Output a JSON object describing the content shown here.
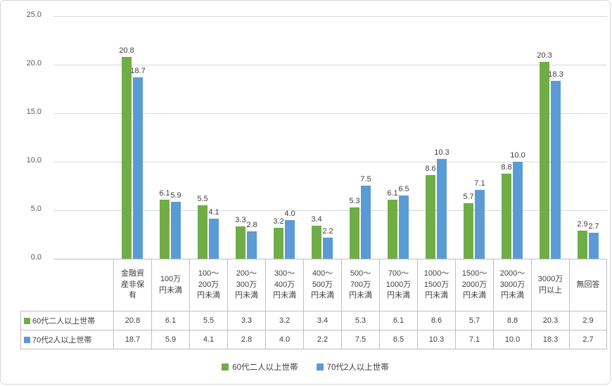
{
  "chart_data": {
    "type": "bar",
    "title": "",
    "ylim": [
      0,
      25
    ],
    "yticks": [
      0,
      5,
      10,
      15,
      20,
      25
    ],
    "grid": true,
    "legend_position": "bottom",
    "data_table_shown": true,
    "categories": [
      "金融資産非保有",
      "100万円未満",
      "100〜200万円未満",
      "200〜300万円未満",
      "300〜400万円未満",
      "400〜500万円未満",
      "500〜700万円未満",
      "700〜1000万円未満",
      "1000〜1500万円未満",
      "1500〜2000万円未満",
      "2000〜3000万円未満",
      "3000万円以上",
      "無回答"
    ],
    "axis_labels": [
      "金融資\n産非保\n有",
      "100万\n円未満",
      "100〜\n200万\n円未満",
      "200〜\n300万\n円未満",
      "300〜\n400万\n円未満",
      "400〜\n500万\n円未満",
      "500〜\n700万\n円未満",
      "700〜\n1000万\n円未満",
      "1000〜\n1500万\n円未満",
      "1500〜\n2000万\n円未満",
      "2000〜\n3000万\n円未満",
      "3000万\n円以上",
      "無回答"
    ],
    "series": [
      {
        "name": "60代二人以上世帯",
        "color": "#70AD47",
        "values": [
          20.8,
          6.1,
          5.5,
          3.3,
          3.2,
          3.4,
          5.3,
          6.1,
          8.6,
          5.7,
          8.8,
          20.3,
          2.9
        ]
      },
      {
        "name": "70代2人以上世帯",
        "color": "#5B9BD5",
        "values": [
          18.7,
          5.9,
          4.1,
          2.8,
          4.0,
          2.2,
          7.5,
          6.5,
          10.3,
          7.1,
          10.0,
          18.3,
          2.7
        ]
      }
    ]
  },
  "colors": {
    "series1": "#70AD47",
    "series2": "#5B9BD5",
    "gridline": "#D9D9D9",
    "axis_text": "#595959",
    "label_text": "#404040",
    "table_border": "#BFBFBF"
  }
}
